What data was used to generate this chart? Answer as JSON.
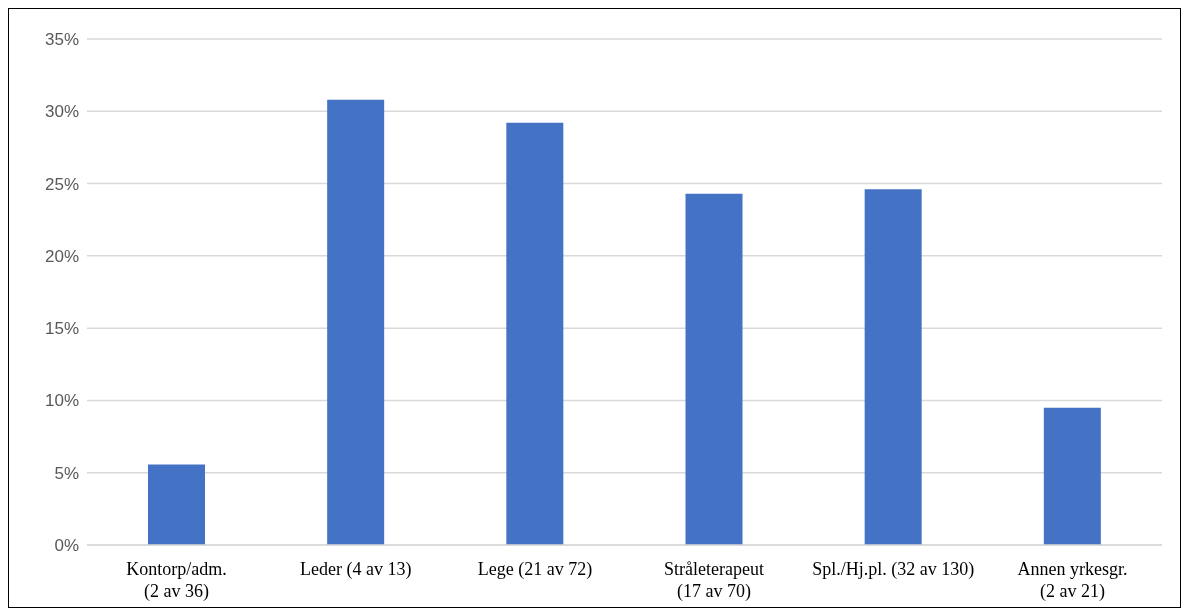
{
  "chart_data": {
    "type": "bar",
    "categories": [
      "Kontorp/adm. (2 av 36)",
      "Leder (4 av 13)",
      "Lege (21 av 72)",
      "Stråleterapeut (17 av 70)",
      "Spl./Hj.pl. (32 av 130)",
      "Annen yrkesgr. (2 av 21)"
    ],
    "values": [
      5.56,
      30.8,
      29.2,
      24.3,
      24.6,
      9.5
    ],
    "color": "#4472c4",
    "ylim": [
      0,
      35
    ],
    "yticks": [
      {
        "value": 0,
        "label": "0%"
      },
      {
        "value": 5,
        "label": "5%"
      },
      {
        "value": 10,
        "label": "10%"
      },
      {
        "value": 15,
        "label": "15%"
      },
      {
        "value": 20,
        "label": "20%"
      },
      {
        "value": 25,
        "label": "25%"
      },
      {
        "value": 30,
        "label": "30%"
      },
      {
        "value": 35,
        "label": "35%"
      }
    ],
    "grid": "y"
  }
}
